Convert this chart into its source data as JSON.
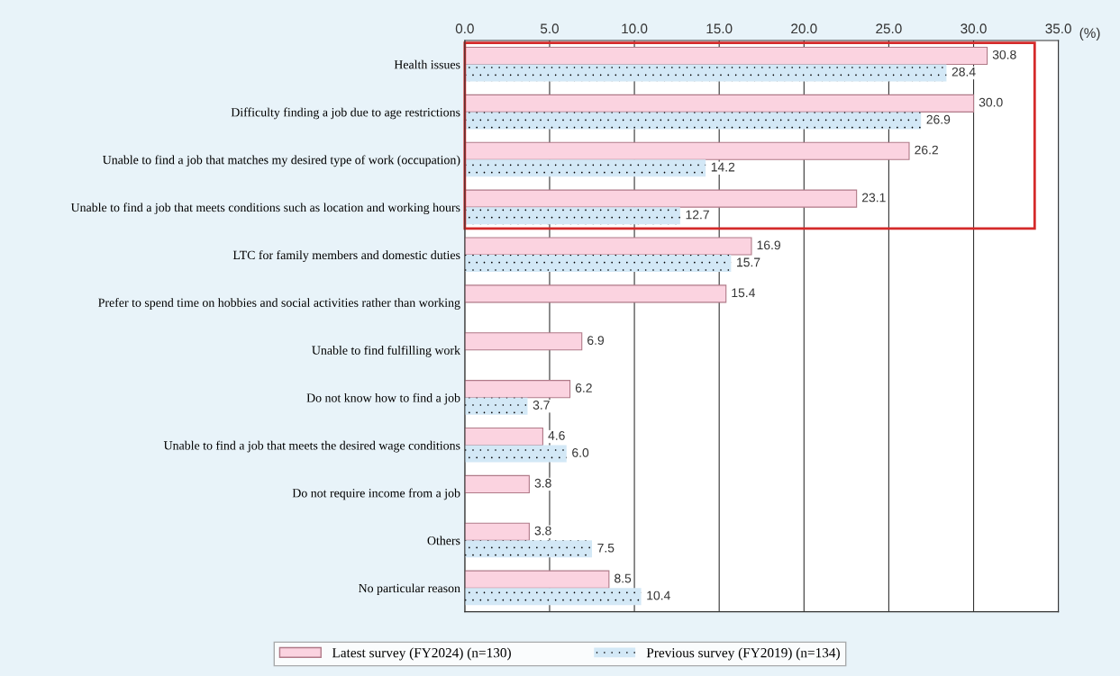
{
  "chart_data": {
    "type": "bar",
    "orientation": "horizontal",
    "xlabel": "(%)",
    "categories": [
      "Health issues",
      "Difficulty finding a job due to age restrictions",
      "Unable to find a job that matches my desired type of work (occupation)",
      "Unable to find a job that meets conditions such as location and working hours",
      "LTC for family members and domestic duties",
      "Prefer to spend time on hobbies and social activities rather than working",
      "Unable to find fulfilling work",
      "Do not know how to find a job",
      "Unable to find a job that meets the desired wage conditions",
      "Do not require income from a job",
      "Others",
      "No particular reason"
    ],
    "series": [
      {
        "name": "Latest survey (FY2024) (n=130)",
        "color": "#fbd3e0",
        "values": [
          30.8,
          30.0,
          26.2,
          23.1,
          16.9,
          15.4,
          6.9,
          6.2,
          4.6,
          3.8,
          3.8,
          8.5
        ],
        "value_labels": [
          "30.8",
          "30.0",
          "26.2",
          "23.1",
          "16.9",
          "15.4",
          "6.9",
          "6.2",
          "4.6",
          "3.8",
          "3.8",
          "8.5"
        ]
      },
      {
        "name": "Previous survey (FY2019) (n=134)",
        "color": "#d3e8f6",
        "values": [
          28.4,
          26.9,
          14.2,
          12.7,
          15.7,
          null,
          null,
          3.7,
          6.0,
          null,
          7.5,
          10.4
        ],
        "value_labels": [
          "28.4",
          "26.9",
          "14.2",
          "12.7",
          "15.7",
          null,
          null,
          "3.7",
          "6.0",
          null,
          "7.5",
          "10.4"
        ]
      }
    ],
    "xlim": [
      0,
      35
    ],
    "xticks": [
      {
        "value": 0,
        "label": "0.0"
      },
      {
        "value": 5,
        "label": "5.0"
      },
      {
        "value": 10,
        "label": "10.0"
      },
      {
        "value": 15,
        "label": "15.0"
      },
      {
        "value": 20,
        "label": "20.0"
      },
      {
        "value": 25,
        "label": "25.0"
      },
      {
        "value": 30,
        "label": "30.0"
      },
      {
        "value": 35,
        "label": "35.0"
      }
    ],
    "grid": "x",
    "legend": "bottom"
  }
}
